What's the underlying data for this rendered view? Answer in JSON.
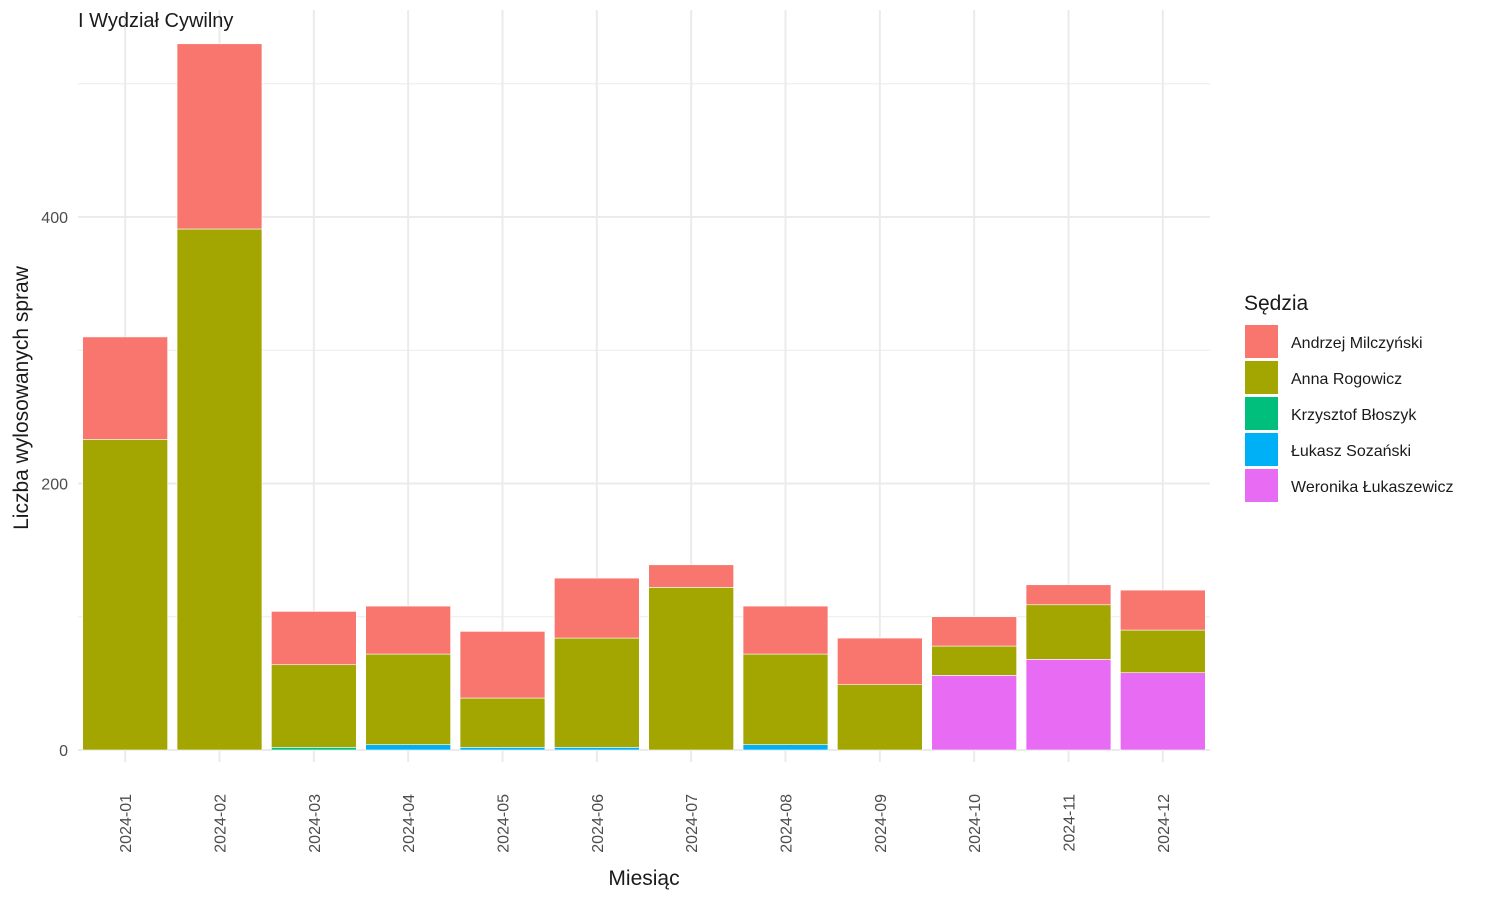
{
  "chart_data": {
    "type": "bar",
    "stacked": true,
    "title": "I Wydział Cywilny",
    "xlabel": "Miesiąc",
    "ylabel": "Liczba wylosowanych spraw",
    "ylim": [
      0,
      550
    ],
    "yticks": [
      0,
      200,
      400
    ],
    "grid": true,
    "legend_title": "Sędzia",
    "legend_position": "right",
    "categories": [
      "2024-01",
      "2024-02",
      "2024-03",
      "2024-04",
      "2024-05",
      "2024-06",
      "2024-07",
      "2024-08",
      "2024-09",
      "2024-10",
      "2024-11",
      "2024-12"
    ],
    "stack_order": [
      "Weronika Łukaszewicz",
      "Łukasz Sozański",
      "Krzysztof Błoszyk",
      "Anna Rogowicz",
      "Andrzej Milczyński"
    ],
    "series": [
      {
        "name": "Andrzej Milczyński",
        "color": "#F8766D",
        "values": [
          77,
          139,
          40,
          36,
          50,
          45,
          17,
          36,
          35,
          22,
          15,
          30
        ]
      },
      {
        "name": "Anna Rogowicz",
        "color": "#A3A500",
        "values": [
          233,
          391,
          62,
          68,
          37,
          82,
          122,
          68,
          49,
          22,
          41,
          32
        ]
      },
      {
        "name": "Krzysztof Błoszyk",
        "color": "#00BF7D",
        "values": [
          0,
          0,
          2,
          0,
          0,
          0,
          0,
          0,
          0,
          0,
          0,
          0
        ]
      },
      {
        "name": "Łukasz Sozański",
        "color": "#00B0F6",
        "values": [
          0,
          0,
          0,
          4,
          2,
          2,
          0,
          4,
          0,
          0,
          0,
          0
        ]
      },
      {
        "name": "Weronika Łukaszewicz",
        "color": "#E76BF3",
        "values": [
          0,
          0,
          0,
          0,
          0,
          0,
          0,
          0,
          0,
          56,
          68,
          58
        ]
      }
    ]
  }
}
